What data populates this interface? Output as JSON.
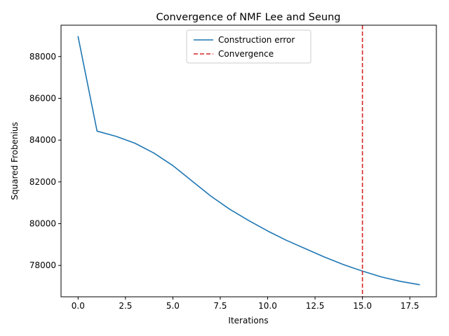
{
  "chart_data": {
    "type": "line",
    "title": "Convergence of NMF Lee and Seung",
    "xlabel": "Iterations",
    "ylabel": "Squared Frobenius",
    "xlim": [
      -0.9,
      18.9
    ],
    "ylim": [
      76500,
      89500
    ],
    "xticks": [
      0,
      2.5,
      5,
      7.5,
      10,
      12.5,
      15,
      17.5
    ],
    "xtick_labels": [
      "0.0",
      "2.5",
      "5.0",
      "7.5",
      "10.0",
      "12.5",
      "15.0",
      "17.5"
    ],
    "yticks": [
      78000,
      80000,
      82000,
      84000,
      86000,
      88000
    ],
    "ytick_labels": [
      "78000",
      "80000",
      "82000",
      "84000",
      "86000",
      "88000"
    ],
    "grid": false,
    "legend_position": "upper-center",
    "series": [
      {
        "name": "Construction error",
        "color": "#1f77b4",
        "style": "solid",
        "x": [
          0,
          1,
          2,
          3,
          4,
          5,
          6,
          7,
          8,
          9,
          10,
          11,
          12,
          13,
          14,
          15,
          16,
          17,
          18
        ],
        "values": [
          88950,
          84430,
          84180,
          83850,
          83380,
          82780,
          82050,
          81320,
          80690,
          80150,
          79650,
          79200,
          78800,
          78400,
          78040,
          77730,
          77450,
          77240,
          77080
        ]
      }
    ],
    "vlines": [
      {
        "name": "Convergence",
        "x": 15,
        "color": "#d62728",
        "style": "dashed"
      }
    ]
  }
}
